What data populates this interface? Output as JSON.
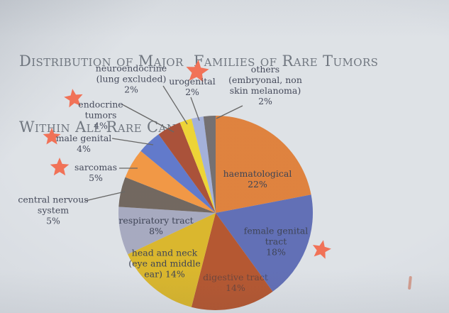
{
  "title": {
    "line1": "Distribution of Major  Families of Rare Tumors",
    "line2": "Within All Rare Cancers"
  },
  "accent_colors": {
    "star": "#f06a4e",
    "leader_line": "#5f5f5e",
    "background": "#dce0e5",
    "title_text": "#697079"
  },
  "chart_data": {
    "type": "pie",
    "title": "Distribution of major families of rare tumors within all rare cancers",
    "units": "percent of all rare cancers",
    "start_angle_deg": 0,
    "direction": "clockwise",
    "total": 100,
    "slices": [
      {
        "id": "haematological",
        "name": "haematological",
        "value": 22,
        "pct_label": "22%",
        "color": "#dd7c35",
        "label_inside": true,
        "starred": false,
        "display": "haematological\n22%"
      },
      {
        "id": "female-genital-tract",
        "name": "female genital tract",
        "value": 18,
        "pct_label": "18%",
        "color": "#5a68b2",
        "label_inside": true,
        "starred": true,
        "display": "female genital\ntract\n18%"
      },
      {
        "id": "digestive-tract",
        "name": "digestive tract",
        "value": 14,
        "pct_label": "14%",
        "color": "#b14f27",
        "label_inside": true,
        "starred": false,
        "display": "digestive tract\n14%"
      },
      {
        "id": "head-and-neck",
        "name": "head and neck (eye and middle ear)",
        "value": 14,
        "pct_label": "14%",
        "color": "#d8b323",
        "label_inside": true,
        "starred": false,
        "display": "head and neck\n(eye and middle\near) 14%"
      },
      {
        "id": "respiratory-tract",
        "name": "respiratory tract",
        "value": 8,
        "pct_label": "8%",
        "color": "#a2a5bd",
        "label_inside": true,
        "starred": false,
        "display": "respiratory tract\n8%"
      },
      {
        "id": "central-nervous-system",
        "name": "central nervous system",
        "value": 5,
        "pct_label": "5%",
        "color": "#6b6057",
        "label_inside": false,
        "starred": false,
        "display": "central nervous\nsystem\n5%"
      },
      {
        "id": "sarcomas",
        "name": "sarcomas",
        "value": 5,
        "pct_label": "5%",
        "color": "#f0923c",
        "label_inside": false,
        "starred": true,
        "display": "sarcomas\n5%"
      },
      {
        "id": "male-genital",
        "name": "male genital",
        "value": 4,
        "pct_label": "4%",
        "color": "#5a73c8",
        "label_inside": false,
        "starred": true,
        "display": "male genital\n4%"
      },
      {
        "id": "endocrine-tumors",
        "name": "endocrine tumors",
        "value": 4,
        "pct_label": "4%",
        "color": "#a5492f",
        "label_inside": false,
        "starred": true,
        "display": "endocrine\ntumors\n4%"
      },
      {
        "id": "neuroendocrine",
        "name": "neuroendocrine (lung excluded)",
        "value": 2,
        "pct_label": "2%",
        "color": "#ecd22c",
        "label_inside": false,
        "starred": false,
        "display": "neuroendocrine\n(lung excluded)\n2%"
      },
      {
        "id": "urogenital",
        "name": "urogenital",
        "value": 2,
        "pct_label": "2%",
        "color": "#9fadd8",
        "label_inside": false,
        "starred": true,
        "display": "urogenital\n2%"
      },
      {
        "id": "others",
        "name": "others (embryonal, non skin melanoma)",
        "value": 2,
        "pct_label": "2%",
        "color": "#6e696b",
        "label_inside": false,
        "starred": false,
        "display": "others\n(embryonal, non\nskin melanoma)\n2%"
      }
    ],
    "legend": "none",
    "marked_slices": [
      "female genital tract",
      "sarcomas",
      "male genital",
      "endocrine tumors",
      "urogenital"
    ]
  }
}
